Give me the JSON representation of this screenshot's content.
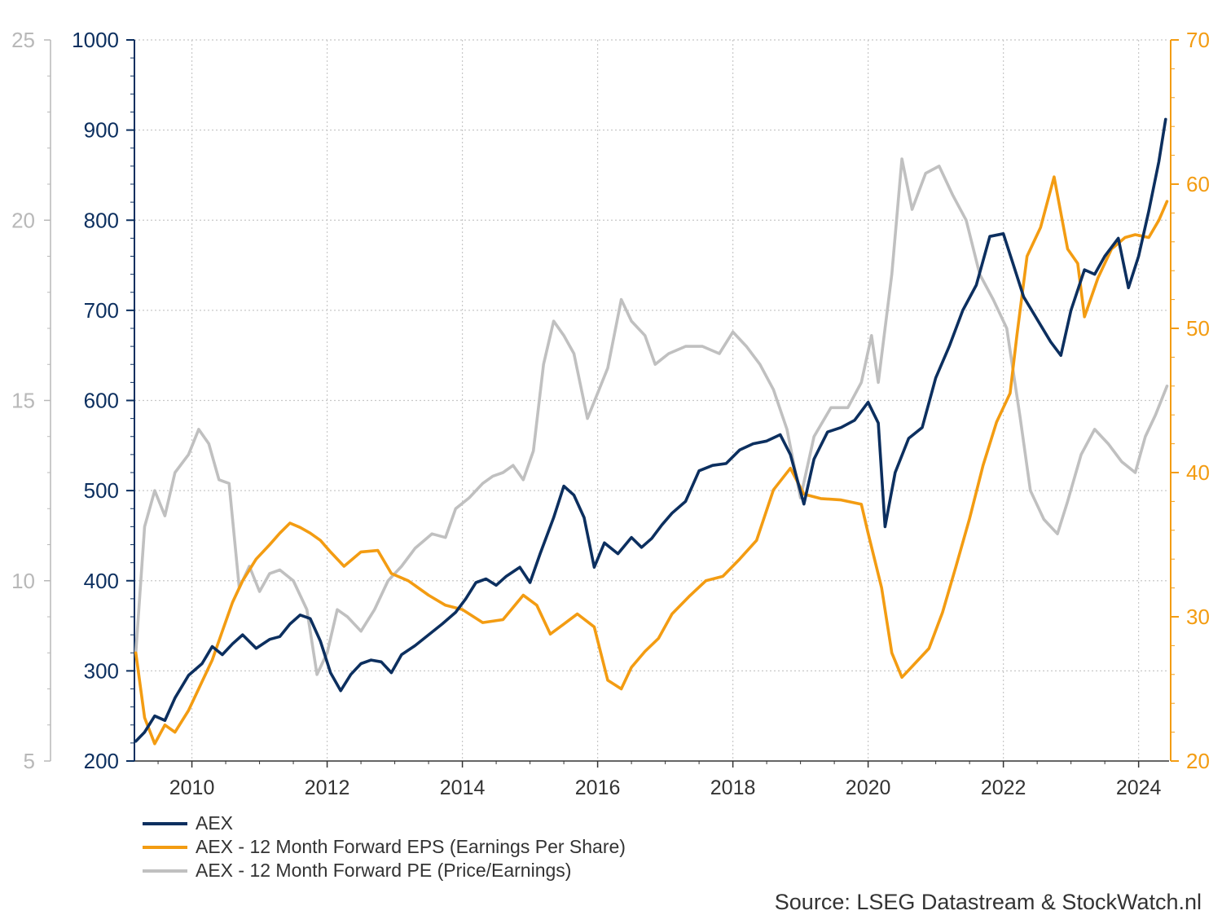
{
  "colors": {
    "aex": "#0c2f5f",
    "eps": "#f39c12",
    "pe": "#c0c0c0",
    "pe_axis": "#b8b8b8",
    "aex_axis": "#0c2f5f",
    "eps_axis": "#f39c12"
  },
  "chart_data": {
    "type": "line",
    "x_ticks": [
      "2010",
      "2012",
      "2014",
      "2016",
      "2018",
      "2020",
      "2022",
      "2024"
    ],
    "xlim": [
      2009.15,
      2024.45
    ],
    "grid": true,
    "legend_position": "bottom-left",
    "axes": {
      "pe": {
        "side": "left-outer",
        "range": [
          5,
          25
        ],
        "ticks": [
          5,
          10,
          15,
          20,
          25
        ]
      },
      "aex": {
        "side": "left-inner",
        "range": [
          200,
          1000
        ],
        "ticks": [
          200,
          300,
          400,
          500,
          600,
          700,
          800,
          900,
          1000
        ]
      },
      "eps": {
        "side": "right",
        "range": [
          20,
          70
        ],
        "ticks": [
          20,
          30,
          40,
          50,
          60,
          70
        ]
      }
    },
    "series": [
      {
        "name": "AEX",
        "axis": "aex",
        "points": [
          [
            2009.17,
            222
          ],
          [
            2009.3,
            232
          ],
          [
            2009.45,
            250
          ],
          [
            2009.6,
            245
          ],
          [
            2009.75,
            270
          ],
          [
            2009.95,
            295
          ],
          [
            2010.15,
            308
          ],
          [
            2010.3,
            327
          ],
          [
            2010.45,
            318
          ],
          [
            2010.6,
            330
          ],
          [
            2010.75,
            340
          ],
          [
            2010.95,
            325
          ],
          [
            2011.15,
            335
          ],
          [
            2011.3,
            338
          ],
          [
            2011.45,
            352
          ],
          [
            2011.6,
            362
          ],
          [
            2011.75,
            358
          ],
          [
            2011.9,
            333
          ],
          [
            2012.05,
            298
          ],
          [
            2012.2,
            278
          ],
          [
            2012.35,
            296
          ],
          [
            2012.5,
            308
          ],
          [
            2012.65,
            312
          ],
          [
            2012.8,
            310
          ],
          [
            2012.95,
            298
          ],
          [
            2013.1,
            318
          ],
          [
            2013.3,
            328
          ],
          [
            2013.5,
            340
          ],
          [
            2013.7,
            352
          ],
          [
            2013.9,
            365
          ],
          [
            2014.05,
            380
          ],
          [
            2014.2,
            398
          ],
          [
            2014.35,
            402
          ],
          [
            2014.5,
            395
          ],
          [
            2014.65,
            405
          ],
          [
            2014.85,
            415
          ],
          [
            2015.0,
            398
          ],
          [
            2015.15,
            430
          ],
          [
            2015.35,
            470
          ],
          [
            2015.5,
            505
          ],
          [
            2015.65,
            495
          ],
          [
            2015.8,
            470
          ],
          [
            2015.95,
            415
          ],
          [
            2016.1,
            442
          ],
          [
            2016.3,
            430
          ],
          [
            2016.5,
            448
          ],
          [
            2016.65,
            437
          ],
          [
            2016.8,
            447
          ],
          [
            2016.95,
            462
          ],
          [
            2017.1,
            475
          ],
          [
            2017.3,
            488
          ],
          [
            2017.5,
            522
          ],
          [
            2017.7,
            528
          ],
          [
            2017.9,
            530
          ],
          [
            2018.1,
            545
          ],
          [
            2018.3,
            552
          ],
          [
            2018.5,
            555
          ],
          [
            2018.7,
            562
          ],
          [
            2018.85,
            540
          ],
          [
            2019.05,
            485
          ],
          [
            2019.2,
            535
          ],
          [
            2019.4,
            565
          ],
          [
            2019.6,
            570
          ],
          [
            2019.8,
            578
          ],
          [
            2020.0,
            598
          ],
          [
            2020.15,
            575
          ],
          [
            2020.25,
            460
          ],
          [
            2020.4,
            520
          ],
          [
            2020.6,
            558
          ],
          [
            2020.8,
            570
          ],
          [
            2021.0,
            625
          ],
          [
            2021.2,
            660
          ],
          [
            2021.4,
            700
          ],
          [
            2021.6,
            728
          ],
          [
            2021.8,
            782
          ],
          [
            2022.0,
            785
          ],
          [
            2022.15,
            750
          ],
          [
            2022.3,
            715
          ],
          [
            2022.5,
            690
          ],
          [
            2022.7,
            665
          ],
          [
            2022.85,
            650
          ],
          [
            2023.0,
            700
          ],
          [
            2023.2,
            745
          ],
          [
            2023.35,
            740
          ],
          [
            2023.5,
            760
          ],
          [
            2023.7,
            780
          ],
          [
            2023.85,
            725
          ],
          [
            2024.0,
            760
          ],
          [
            2024.15,
            810
          ],
          [
            2024.3,
            865
          ],
          [
            2024.4,
            912
          ]
        ]
      },
      {
        "name": "AEX - 12 Month Forward EPS (Earnings Per Share)",
        "axis": "eps",
        "points": [
          [
            2009.17,
            27.5
          ],
          [
            2009.3,
            23
          ],
          [
            2009.45,
            21.2
          ],
          [
            2009.6,
            22.5
          ],
          [
            2009.75,
            22
          ],
          [
            2009.95,
            23.5
          ],
          [
            2010.15,
            25.5
          ],
          [
            2010.3,
            27
          ],
          [
            2010.45,
            29
          ],
          [
            2010.6,
            31
          ],
          [
            2010.75,
            32.5
          ],
          [
            2010.95,
            34
          ],
          [
            2011.15,
            35
          ],
          [
            2011.3,
            35.8
          ],
          [
            2011.45,
            36.5
          ],
          [
            2011.6,
            36.2
          ],
          [
            2011.75,
            35.8
          ],
          [
            2011.9,
            35.3
          ],
          [
            2012.05,
            34.5
          ],
          [
            2012.25,
            33.5
          ],
          [
            2012.5,
            34.5
          ],
          [
            2012.75,
            34.6
          ],
          [
            2012.95,
            33
          ],
          [
            2013.2,
            32.5
          ],
          [
            2013.5,
            31.5
          ],
          [
            2013.75,
            30.8
          ],
          [
            2014.0,
            30.5
          ],
          [
            2014.3,
            29.6
          ],
          [
            2014.6,
            29.8
          ],
          [
            2014.9,
            31.5
          ],
          [
            2015.1,
            30.8
          ],
          [
            2015.3,
            28.8
          ],
          [
            2015.5,
            29.5
          ],
          [
            2015.7,
            30.2
          ],
          [
            2015.95,
            29.3
          ],
          [
            2016.15,
            25.6
          ],
          [
            2016.35,
            25
          ],
          [
            2016.5,
            26.5
          ],
          [
            2016.7,
            27.6
          ],
          [
            2016.9,
            28.5
          ],
          [
            2017.1,
            30.2
          ],
          [
            2017.35,
            31.4
          ],
          [
            2017.6,
            32.5
          ],
          [
            2017.85,
            32.8
          ],
          [
            2018.1,
            34
          ],
          [
            2018.35,
            35.3
          ],
          [
            2018.6,
            38.8
          ],
          [
            2018.85,
            40.3
          ],
          [
            2019.05,
            38.5
          ],
          [
            2019.3,
            38.2
          ],
          [
            2019.6,
            38.1
          ],
          [
            2019.9,
            37.8
          ],
          [
            2020.0,
            35.8
          ],
          [
            2020.2,
            32
          ],
          [
            2020.35,
            27.5
          ],
          [
            2020.5,
            25.8
          ],
          [
            2020.7,
            26.8
          ],
          [
            2020.9,
            27.8
          ],
          [
            2021.1,
            30.3
          ],
          [
            2021.3,
            33.5
          ],
          [
            2021.5,
            36.8
          ],
          [
            2021.7,
            40.5
          ],
          [
            2021.9,
            43.5
          ],
          [
            2022.1,
            45.5
          ],
          [
            2022.2,
            49.5
          ],
          [
            2022.35,
            55
          ],
          [
            2022.55,
            57
          ],
          [
            2022.75,
            60.5
          ],
          [
            2022.95,
            55.5
          ],
          [
            2023.1,
            54.5
          ],
          [
            2023.2,
            50.8
          ],
          [
            2023.4,
            53.5
          ],
          [
            2023.6,
            55.5
          ],
          [
            2023.8,
            56.3
          ],
          [
            2023.95,
            56.5
          ],
          [
            2024.15,
            56.3
          ],
          [
            2024.3,
            57.5
          ],
          [
            2024.42,
            58.8
          ]
        ]
      },
      {
        "name": "AEX - 12 Month Forward PE (Price/Earnings)",
        "axis": "pe",
        "points": [
          [
            2009.17,
            8
          ],
          [
            2009.3,
            11.5
          ],
          [
            2009.45,
            12.5
          ],
          [
            2009.6,
            11.8
          ],
          [
            2009.75,
            13
          ],
          [
            2009.95,
            13.5
          ],
          [
            2010.1,
            14.2
          ],
          [
            2010.25,
            13.8
          ],
          [
            2010.4,
            12.8
          ],
          [
            2010.55,
            12.7
          ],
          [
            2010.7,
            9.8
          ],
          [
            2010.85,
            10.4
          ],
          [
            2011.0,
            9.7
          ],
          [
            2011.15,
            10.2
          ],
          [
            2011.3,
            10.3
          ],
          [
            2011.5,
            10.0
          ],
          [
            2011.7,
            9.2
          ],
          [
            2011.85,
            7.4
          ],
          [
            2012.0,
            8.0
          ],
          [
            2012.15,
            9.2
          ],
          [
            2012.3,
            9.0
          ],
          [
            2012.5,
            8.6
          ],
          [
            2012.7,
            9.2
          ],
          [
            2012.9,
            10.0
          ],
          [
            2013.1,
            10.4
          ],
          [
            2013.3,
            10.9
          ],
          [
            2013.55,
            11.3
          ],
          [
            2013.75,
            11.2
          ],
          [
            2013.9,
            12.0
          ],
          [
            2014.1,
            12.3
          ],
          [
            2014.3,
            12.7
          ],
          [
            2014.45,
            12.9
          ],
          [
            2014.6,
            13.0
          ],
          [
            2014.75,
            13.2
          ],
          [
            2014.9,
            12.8
          ],
          [
            2015.05,
            13.6
          ],
          [
            2015.2,
            16.0
          ],
          [
            2015.35,
            17.2
          ],
          [
            2015.5,
            16.8
          ],
          [
            2015.65,
            16.3
          ],
          [
            2015.85,
            14.5
          ],
          [
            2016.0,
            15.2
          ],
          [
            2016.15,
            15.9
          ],
          [
            2016.35,
            17.8
          ],
          [
            2016.5,
            17.2
          ],
          [
            2016.7,
            16.8
          ],
          [
            2016.85,
            16.0
          ],
          [
            2017.05,
            16.3
          ],
          [
            2017.3,
            16.5
          ],
          [
            2017.55,
            16.5
          ],
          [
            2017.8,
            16.3
          ],
          [
            2018.0,
            16.9
          ],
          [
            2018.2,
            16.5
          ],
          [
            2018.4,
            16.0
          ],
          [
            2018.6,
            15.3
          ],
          [
            2018.8,
            14.2
          ],
          [
            2019.0,
            12.3
          ],
          [
            2019.2,
            14.0
          ],
          [
            2019.45,
            14.8
          ],
          [
            2019.7,
            14.8
          ],
          [
            2019.9,
            15.5
          ],
          [
            2020.05,
            16.8
          ],
          [
            2020.15,
            15.5
          ],
          [
            2020.35,
            18.5
          ],
          [
            2020.5,
            21.7
          ],
          [
            2020.65,
            20.3
          ],
          [
            2020.85,
            21.3
          ],
          [
            2021.05,
            21.5
          ],
          [
            2021.25,
            20.7
          ],
          [
            2021.45,
            20.0
          ],
          [
            2021.65,
            18.5
          ],
          [
            2021.85,
            17.8
          ],
          [
            2022.05,
            17.0
          ],
          [
            2022.25,
            14.5
          ],
          [
            2022.4,
            12.5
          ],
          [
            2022.6,
            11.7
          ],
          [
            2022.8,
            11.3
          ],
          [
            2022.95,
            12.2
          ],
          [
            2023.15,
            13.5
          ],
          [
            2023.35,
            14.2
          ],
          [
            2023.55,
            13.8
          ],
          [
            2023.75,
            13.3
          ],
          [
            2023.95,
            13.0
          ],
          [
            2024.1,
            14.0
          ],
          [
            2024.25,
            14.6
          ],
          [
            2024.42,
            15.4
          ]
        ]
      }
    ]
  },
  "legend": [
    {
      "key": "aex",
      "label": "AEX"
    },
    {
      "key": "eps",
      "label": "AEX - 12 Month Forward EPS (Earnings Per Share)"
    },
    {
      "key": "pe",
      "label": "AEX - 12 Month Forward PE (Price/Earnings)"
    }
  ],
  "source": "Source: LSEG Datastream & StockWatch.nl"
}
